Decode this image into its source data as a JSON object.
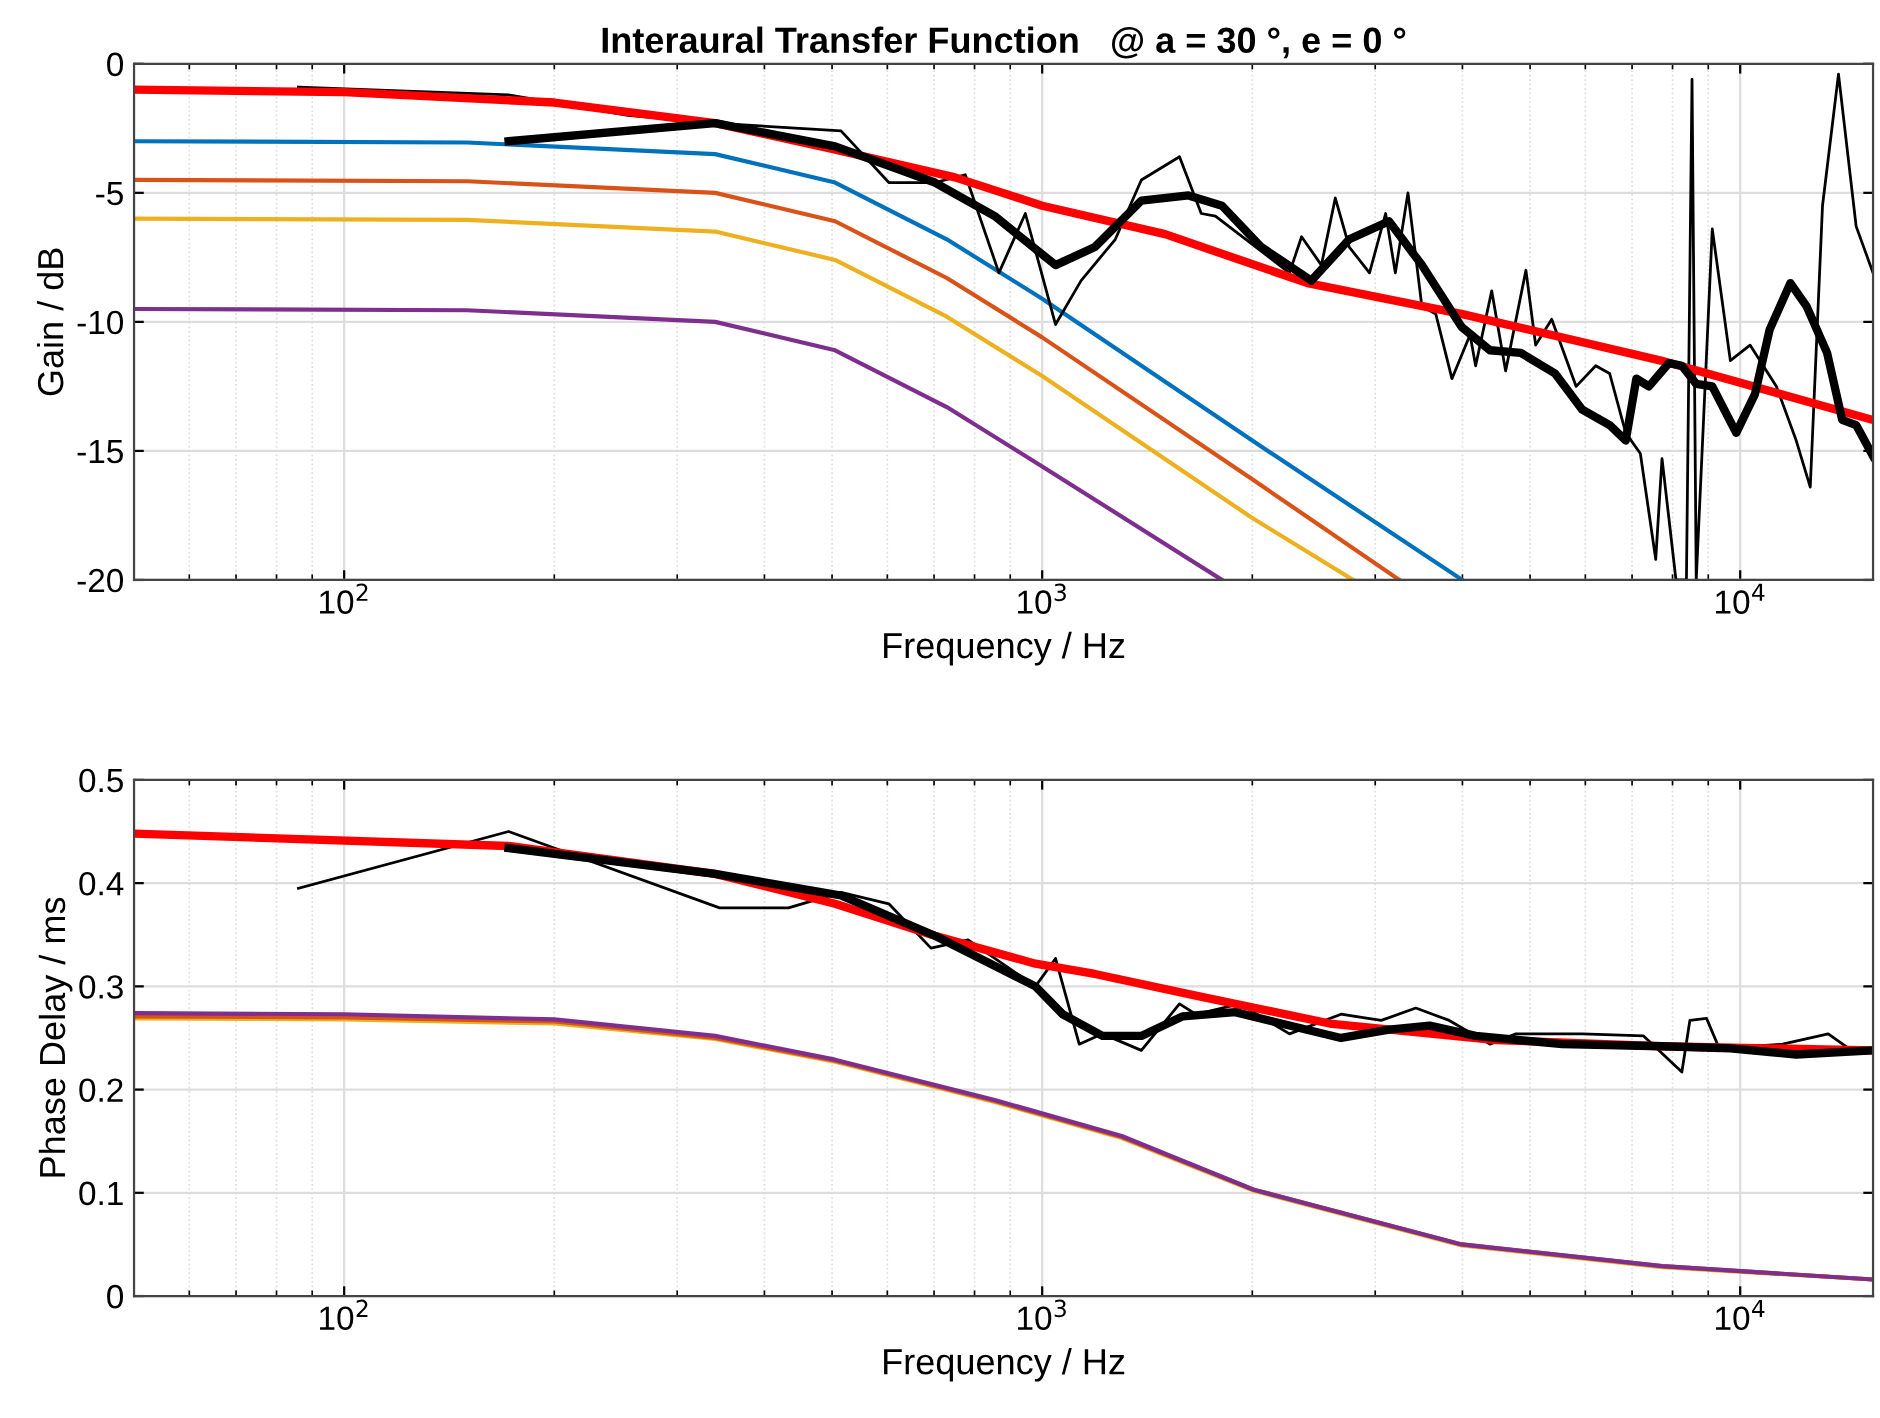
{
  "chart_data": [
    {
      "type": "line",
      "title": "Interaural Transfer Function   @ a = 30 °, e = 0 °",
      "xlabel": "Frequency / Hz",
      "ylabel": "Gain / dB",
      "log": "x",
      "grid": true,
      "marker": "none",
      "line_style": "solid",
      "xlim": [
        50,
        15500
      ],
      "xticks": [
        {
          "value": 100,
          "label": "10$^{2}$"
        },
        {
          "value": 1000,
          "label": "10$^{3}$"
        },
        {
          "value": 10000,
          "label": "10$^{4}$"
        }
      ],
      "ylim": [
        -20,
        0
      ],
      "yticks": [
        -20,
        -15,
        -10,
        -5,
        0
      ],
      "series": [
        {
          "color": "#0072bd",
          "x": [
            50,
            150,
            340,
            505,
            730,
            1000,
            2000,
            4000
          ],
          "values": [
            -3.0,
            -3.05,
            -3.5,
            -4.6,
            -6.8,
            -9.1,
            -14.6,
            -20
          ]
        },
        {
          "color": "#d95319",
          "x": [
            50,
            150,
            340,
            505,
            730,
            1000,
            2000,
            3250
          ],
          "values": [
            -4.5,
            -4.55,
            -5.0,
            -6.1,
            -8.3,
            -10.6,
            -16.1,
            -20
          ]
        },
        {
          "color": "#edb120",
          "x": [
            50,
            150,
            340,
            505,
            730,
            1000,
            2000,
            2790
          ],
          "values": [
            -6.0,
            -6.05,
            -6.5,
            -7.6,
            -9.8,
            -12.1,
            -17.6,
            -20
          ]
        },
        {
          "color": "#7e2f8e",
          "x": [
            50,
            150,
            340,
            505,
            730,
            1000,
            1810
          ],
          "values": [
            -9.5,
            -9.55,
            -10.0,
            -11.1,
            -13.3,
            -15.6,
            -20
          ]
        },
        {
          "color": "#000000",
          "x": [
            86,
            172,
            255,
            340,
            515,
            603,
            702,
            776,
            867,
            946,
            1045,
            1137,
            1273,
            1387,
            1573,
            1690,
            1771,
            2261,
            2353,
            2512,
            2630,
            2754,
            2944,
            3105,
            3206,
            3342,
            3499,
            3664,
            3864,
            4102,
            4178,
            4406,
            4613,
            4932,
            5093,
            5370,
            5821,
            6209,
            6501,
            6855,
            7194,
            7568,
            7727,
            8091,
            8375,
            8531,
            8650,
            9120,
            9680,
            10330,
            11270,
            12030,
            12600,
            13120,
            13830,
            14660,
            15500
          ],
          "values": [
            -0.9,
            -1.2,
            -2.0,
            -2.3,
            -2.6,
            -4.6,
            -4.6,
            -4.3,
            -8.1,
            -5.8,
            -10.1,
            -8.4,
            -6.8,
            -4.5,
            -3.6,
            -5.8,
            -5.9,
            -8.1,
            -6.7,
            -7.8,
            -5.2,
            -7.1,
            -8.1,
            -5.8,
            -8.1,
            -5.0,
            -9.4,
            -9.7,
            -12.2,
            -10.5,
            -11.7,
            -8.8,
            -11.9,
            -8.0,
            -10.9,
            -9.9,
            -12.5,
            -11.7,
            -12.0,
            -14.3,
            -15.1,
            -19.2,
            -15.3,
            -20,
            -20,
            -0.6,
            -20,
            -6.4,
            -11.5,
            -10.9,
            -12.5,
            -14.6,
            -16.4,
            -5.5,
            -0.4,
            -6.3,
            -8.1
          ]
        },
        {
          "color": "#ff0000",
          "x": [
            50,
            100,
            200,
            340,
            500,
            750,
            1000,
            1500,
            2400,
            4000,
            7700,
            15500
          ],
          "values": [
            -1.0,
            -1.1,
            -1.5,
            -2.3,
            -3.3,
            -4.4,
            -5.5,
            -6.6,
            -8.5,
            -9.7,
            -11.5,
            -13.8
          ]
        },
        {
          "color": "#000000",
          "x": [
            172,
            340,
            505,
            702,
            855,
            1045,
            1190,
            1387,
            1620,
            1810,
            2060,
            2430,
            2754,
            3140,
            3499,
            3990,
            4380,
            4850,
            5430,
            5940,
            6500,
            6855,
            7100,
            7400,
            7900,
            8250,
            8650,
            9120,
            9870,
            10500,
            11020,
            11800,
            12450,
            13320,
            14000,
            14660,
            15500
          ],
          "values": [
            -3.0,
            -2.3,
            -3.2,
            -4.6,
            -5.9,
            -7.8,
            -7.1,
            -5.3,
            -5.1,
            -5.5,
            -7.1,
            -8.4,
            -6.8,
            -6.1,
            -7.8,
            -10.2,
            -11.1,
            -11.2,
            -12.0,
            -13.4,
            -14.0,
            -14.6,
            -12.2,
            -12.5,
            -11.6,
            -11.7,
            -12.4,
            -12.5,
            -14.3,
            -12.8,
            -10.3,
            -8.5,
            -9.4,
            -11.2,
            -13.8,
            -14.0,
            -15.2
          ]
        }
      ]
    },
    {
      "type": "line",
      "xlabel": "Frequency / Hz",
      "ylabel": "Phase Delay / ms",
      "log": "x",
      "grid": true,
      "marker": "none",
      "line_style": "solid",
      "xlim": [
        50,
        15500
      ],
      "xticks": [
        {
          "value": 100,
          "label": "10$^{2}$"
        },
        {
          "value": 1000,
          "label": "10$^{3}$"
        },
        {
          "value": 10000,
          "label": "10$^{4}$"
        }
      ],
      "ylim": [
        0,
        0.5
      ],
      "yticks": [
        0,
        0.1,
        0.2,
        0.3,
        0.4,
        0.5
      ],
      "series": [
        {
          "color": "#edb120",
          "x": [
            50,
            100,
            200,
            340,
            505,
            855,
            1300,
            2010,
            3990,
            7730,
            15500
          ],
          "values": [
            0.269,
            0.268,
            0.264,
            0.249,
            0.227,
            0.188,
            0.153,
            0.102,
            0.049,
            0.028,
            0.016
          ]
        },
        {
          "color": "#d95319",
          "x": [
            50,
            100,
            200,
            340,
            505,
            855,
            1300,
            2010,
            3990,
            7730,
            15500
          ],
          "values": [
            0.271,
            0.27,
            0.266,
            0.25,
            0.228,
            0.189,
            0.154,
            0.103,
            0.05,
            0.029,
            0.016
          ]
        },
        {
          "color": "#7e2f8e",
          "x": [
            50,
            100,
            200,
            340,
            505,
            855,
            1300,
            2010,
            3990,
            7730,
            15500
          ],
          "values": [
            0.274,
            0.273,
            0.268,
            0.252,
            0.229,
            0.19,
            0.155,
            0.103,
            0.05,
            0.029,
            0.016
          ]
        },
        {
          "color": "#000000",
          "x": [
            86,
            172,
            345,
            433,
            515,
            603,
            693,
            783,
            978,
            1045,
            1130,
            1220,
            1387,
            1573,
            1660,
            1920,
            2261,
            2680,
            3060,
            3430,
            3830,
            4380,
            4770,
            5940,
            7270,
            8250,
            8470,
            8950,
            9330,
            11500,
            13370,
            14300,
            15500
          ],
          "values": [
            0.395,
            0.45,
            0.376,
            0.376,
            0.391,
            0.38,
            0.337,
            0.345,
            0.3,
            0.327,
            0.244,
            0.254,
            0.238,
            0.283,
            0.273,
            0.283,
            0.254,
            0.273,
            0.267,
            0.279,
            0.267,
            0.244,
            0.254,
            0.254,
            0.252,
            0.217,
            0.267,
            0.269,
            0.24,
            0.244,
            0.254,
            0.24,
            0.238
          ]
        },
        {
          "color": "#ff0000",
          "x": [
            50,
            172,
            340,
            505,
            702,
            978,
            1190,
            1660,
            2582,
            4467,
            7700,
            15500
          ],
          "values": [
            0.448,
            0.436,
            0.409,
            0.38,
            0.349,
            0.322,
            0.312,
            0.291,
            0.264,
            0.248,
            0.242,
            0.238
          ]
        },
        {
          "color": "#000000",
          "x": [
            172,
            340,
            515,
            702,
            978,
            1070,
            1220,
            1387,
            1590,
            1890,
            2200,
            2680,
            3140,
            3590,
            4178,
            5560,
            7730,
            9680,
            12030,
            15500
          ],
          "values": [
            0.434,
            0.409,
            0.388,
            0.349,
            0.3,
            0.273,
            0.252,
            0.252,
            0.271,
            0.275,
            0.264,
            0.25,
            0.258,
            0.262,
            0.252,
            0.244,
            0.242,
            0.24,
            0.234,
            0.238
          ]
        }
      ]
    }
  ]
}
